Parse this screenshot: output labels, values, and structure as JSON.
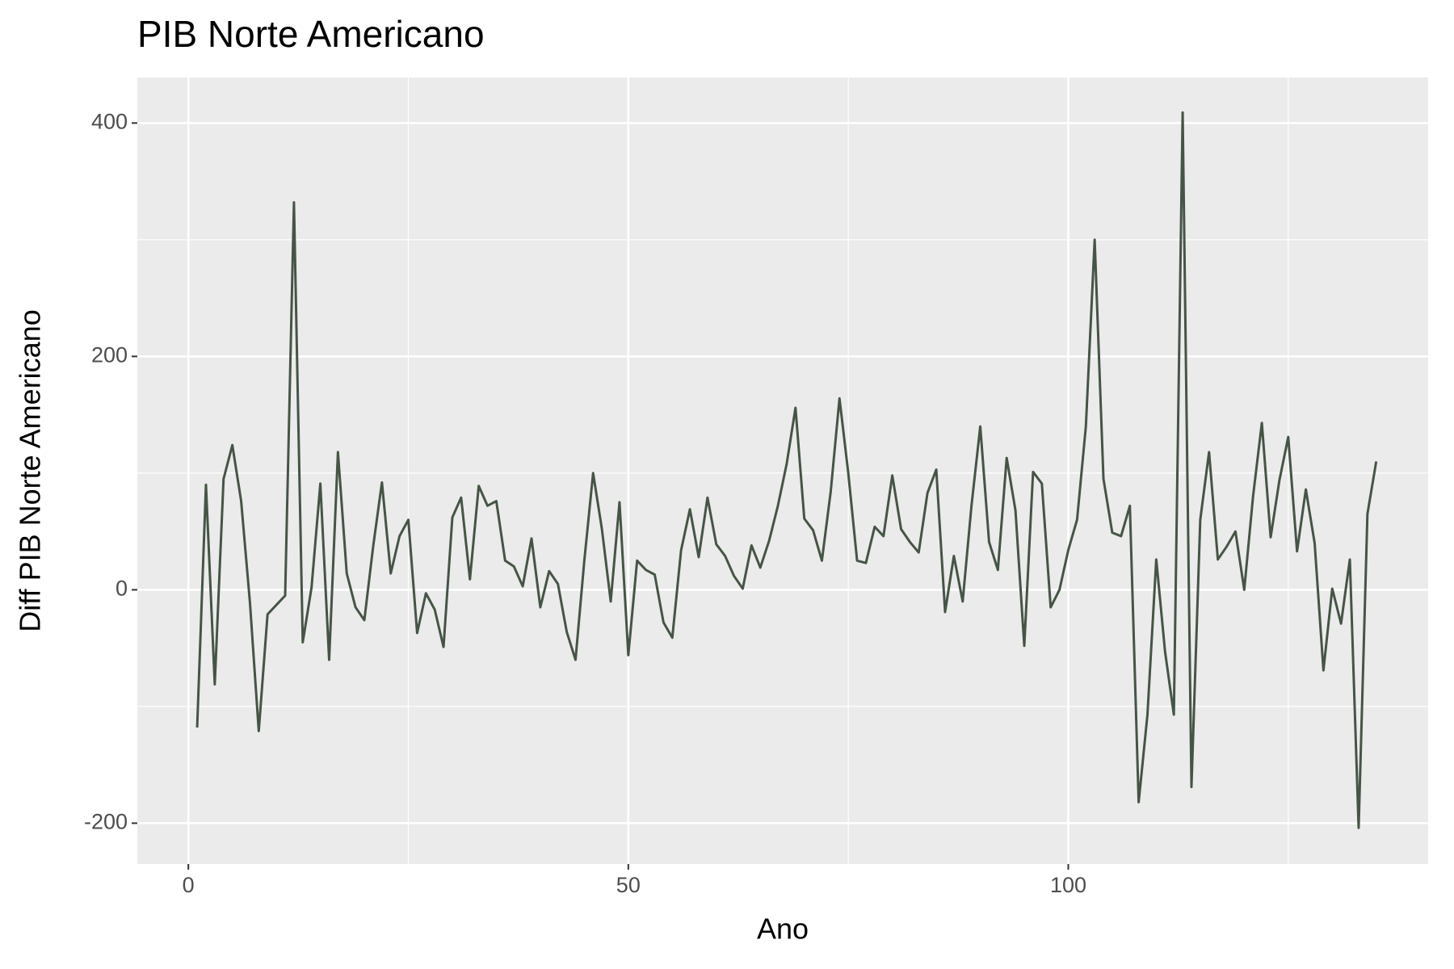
{
  "chart_data": {
    "type": "line",
    "title": "PIB Norte Americano",
    "x_label": "Ano",
    "y_label": "Diff PIB Norte Americano",
    "x": [
      1,
      2,
      3,
      4,
      5,
      6,
      7,
      8,
      9,
      10,
      11,
      12,
      13,
      14,
      15,
      16,
      17,
      18,
      19,
      20,
      21,
      22,
      23,
      24,
      25,
      26,
      27,
      28,
      29,
      30,
      31,
      32,
      33,
      34,
      35,
      36,
      37,
      38,
      39,
      40,
      41,
      42,
      43,
      44,
      45,
      46,
      47,
      48,
      49,
      50,
      51,
      52,
      53,
      54,
      55,
      56,
      57,
      58,
      59,
      60,
      61,
      62,
      63,
      64,
      65,
      66,
      67,
      68,
      69,
      70,
      71,
      72,
      73,
      74,
      75,
      76,
      77,
      78,
      79,
      80,
      81,
      82,
      83,
      84,
      85,
      86,
      87,
      88,
      89,
      90,
      91,
      92,
      93,
      94,
      95,
      96,
      97,
      98,
      99,
      100,
      101,
      102,
      103,
      104,
      105,
      106,
      107,
      108,
      109,
      110,
      111,
      112,
      113,
      114,
      115,
      116,
      117,
      118,
      119,
      120,
      121,
      122,
      123,
      124,
      125,
      126,
      127,
      128,
      129,
      130,
      131,
      132,
      133,
      134,
      135
    ],
    "series": [
      {
        "name": "Diff PIB Norte Americano",
        "color": "#465446",
        "values": [
          -118,
          90,
          -81,
          95,
          124,
          76,
          -11,
          -121,
          -21,
          -13,
          -5,
          332,
          -45,
          2,
          91,
          -60,
          118,
          14,
          -15,
          -26,
          37,
          92,
          14,
          46,
          60,
          -37,
          -3,
          -17,
          -49,
          62,
          79,
          9,
          89,
          72,
          76,
          25,
          20,
          3,
          44,
          -15,
          16,
          5,
          -36,
          -60,
          25,
          100,
          52,
          -10,
          75,
          -56,
          25,
          17,
          13,
          -28,
          -41,
          34,
          69,
          28,
          79,
          39,
          29,
          12,
          1,
          38,
          19,
          42,
          72,
          108,
          156,
          61,
          51,
          25,
          84,
          164,
          100,
          25,
          23,
          54,
          46,
          98,
          52,
          41,
          32,
          83,
          103,
          -19,
          29,
          -10,
          72,
          140,
          41,
          17,
          113,
          68,
          -48,
          101,
          91,
          -15,
          0,
          34,
          60,
          140,
          300,
          95,
          49,
          46,
          72,
          -182,
          -107,
          26,
          -53,
          -107,
          409,
          -169,
          60,
          118,
          26,
          37,
          50,
          0,
          80,
          143,
          45,
          94,
          131,
          33,
          86,
          40,
          -69,
          1,
          -29,
          26,
          -204,
          65,
          110
        ]
      }
    ],
    "xlim": [
      -5.8,
      140.9
    ],
    "ylim": [
      -235,
      439
    ],
    "xticks": [
      0,
      50,
      100
    ],
    "yticks": [
      -200,
      0,
      200,
      400
    ],
    "grid": true
  }
}
